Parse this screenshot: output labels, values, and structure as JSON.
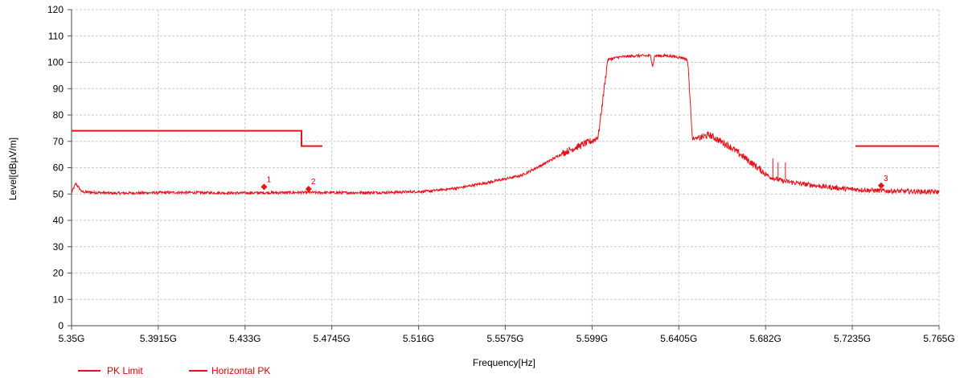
{
  "chart_data": {
    "type": "line",
    "title": "",
    "xlabel": "Frequency[Hz]",
    "ylabel": "Level[dBµV/m]",
    "xlim": [
      5.35,
      5.765
    ],
    "ylim": [
      0,
      120
    ],
    "x_unit": "GHz",
    "x_ticks": [
      5.35,
      5.3915,
      5.433,
      5.4745,
      5.516,
      5.5575,
      5.599,
      5.6405,
      5.682,
      5.7235,
      5.765
    ],
    "x_tick_labels": [
      "5.35G",
      "5.3915G",
      "5.433G",
      "5.4745G",
      "5.516G",
      "5.5575G",
      "5.599G",
      "5.6405G",
      "5.682G",
      "5.7235G",
      "5.765G"
    ],
    "y_ticks": [
      0,
      10,
      20,
      30,
      40,
      50,
      60,
      70,
      80,
      90,
      100,
      110,
      120
    ],
    "y_tick_labels": [
      "0",
      "10",
      "20",
      "30",
      "40",
      "50",
      "60",
      "70",
      "80",
      "90",
      "100",
      "110",
      "120"
    ],
    "grid": true,
    "legend_position": "bottom-left",
    "color": "#e8121b",
    "series": [
      {
        "name": "PK Limit",
        "segments": [
          [
            [
              5.35,
              74
            ],
            [
              5.46,
              74
            ],
            [
              5.46,
              68.2
            ],
            [
              5.47,
              68.2
            ]
          ],
          [
            [
              5.725,
              68.2
            ],
            [
              5.765,
              68.2
            ]
          ]
        ]
      },
      {
        "name": "Horizontal PK",
        "x": [
          5.35,
          5.352,
          5.355,
          5.37,
          5.4,
          5.43,
          5.46,
          5.48,
          5.5,
          5.52,
          5.535,
          5.55,
          5.565,
          5.575,
          5.585,
          5.595,
          5.6,
          5.602,
          5.6065,
          5.609,
          5.612,
          5.62,
          5.627,
          5.628,
          5.629,
          5.635,
          5.642,
          5.6445,
          5.645,
          5.647,
          5.6505,
          5.655,
          5.665,
          5.675,
          5.684,
          5.69,
          5.7,
          5.71,
          5.72,
          5.73,
          5.74,
          5.75,
          5.765
        ],
        "y": [
          50.5,
          54,
          50.8,
          50.3,
          50.6,
          50.4,
          50.6,
          50.5,
          50.6,
          51,
          52.3,
          54.5,
          57,
          61,
          65.5,
          69,
          70.5,
          72,
          101,
          101.5,
          102,
          102.5,
          102.5,
          98.5,
          102.5,
          102.5,
          101.8,
          101,
          98,
          71,
          71.3,
          72.5,
          68,
          62,
          56.5,
          55,
          53.8,
          52.8,
          52,
          51.5,
          51.2,
          51,
          50.8
        ]
      }
    ],
    "markers": [
      {
        "label": "1",
        "x": 5.4421,
        "y": 52.7
      },
      {
        "label": "2",
        "x": 5.4634,
        "y": 51.9
      },
      {
        "label": "3",
        "x": 5.7373,
        "y": 53.2
      }
    ]
  }
}
